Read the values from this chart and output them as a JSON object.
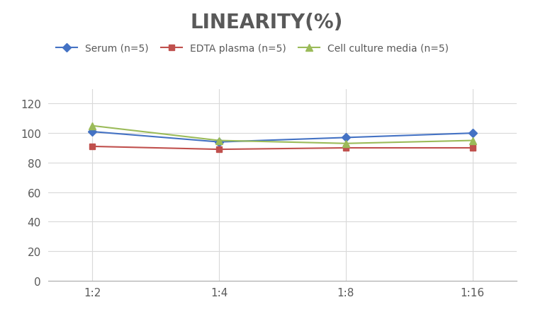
{
  "title": "LINEARITY(%)",
  "x_labels": [
    "1:2",
    "1:4",
    "1:8",
    "1:16"
  ],
  "x_positions": [
    0,
    1,
    2,
    3
  ],
  "series": [
    {
      "label": "Serum (n=5)",
      "values": [
        101,
        94,
        97,
        100
      ],
      "color": "#4472C4",
      "marker": "D",
      "markersize": 6,
      "linewidth": 1.5
    },
    {
      "label": "EDTA plasma (n=5)",
      "values": [
        91,
        89,
        90,
        90
      ],
      "color": "#C0504D",
      "marker": "s",
      "markersize": 6,
      "linewidth": 1.5
    },
    {
      "label": "Cell culture media (n=5)",
      "values": [
        105,
        95,
        93,
        95
      ],
      "color": "#9BBB59",
      "marker": "^",
      "markersize": 7,
      "linewidth": 1.5
    }
  ],
  "ylim": [
    0,
    130
  ],
  "yticks": [
    0,
    20,
    40,
    60,
    80,
    100,
    120
  ],
  "background_color": "#ffffff",
  "title_fontsize": 20,
  "title_color": "#595959",
  "legend_fontsize": 10,
  "tick_fontsize": 11,
  "tick_color": "#595959",
  "grid_color": "#D9D9D9",
  "grid_linewidth": 0.8
}
